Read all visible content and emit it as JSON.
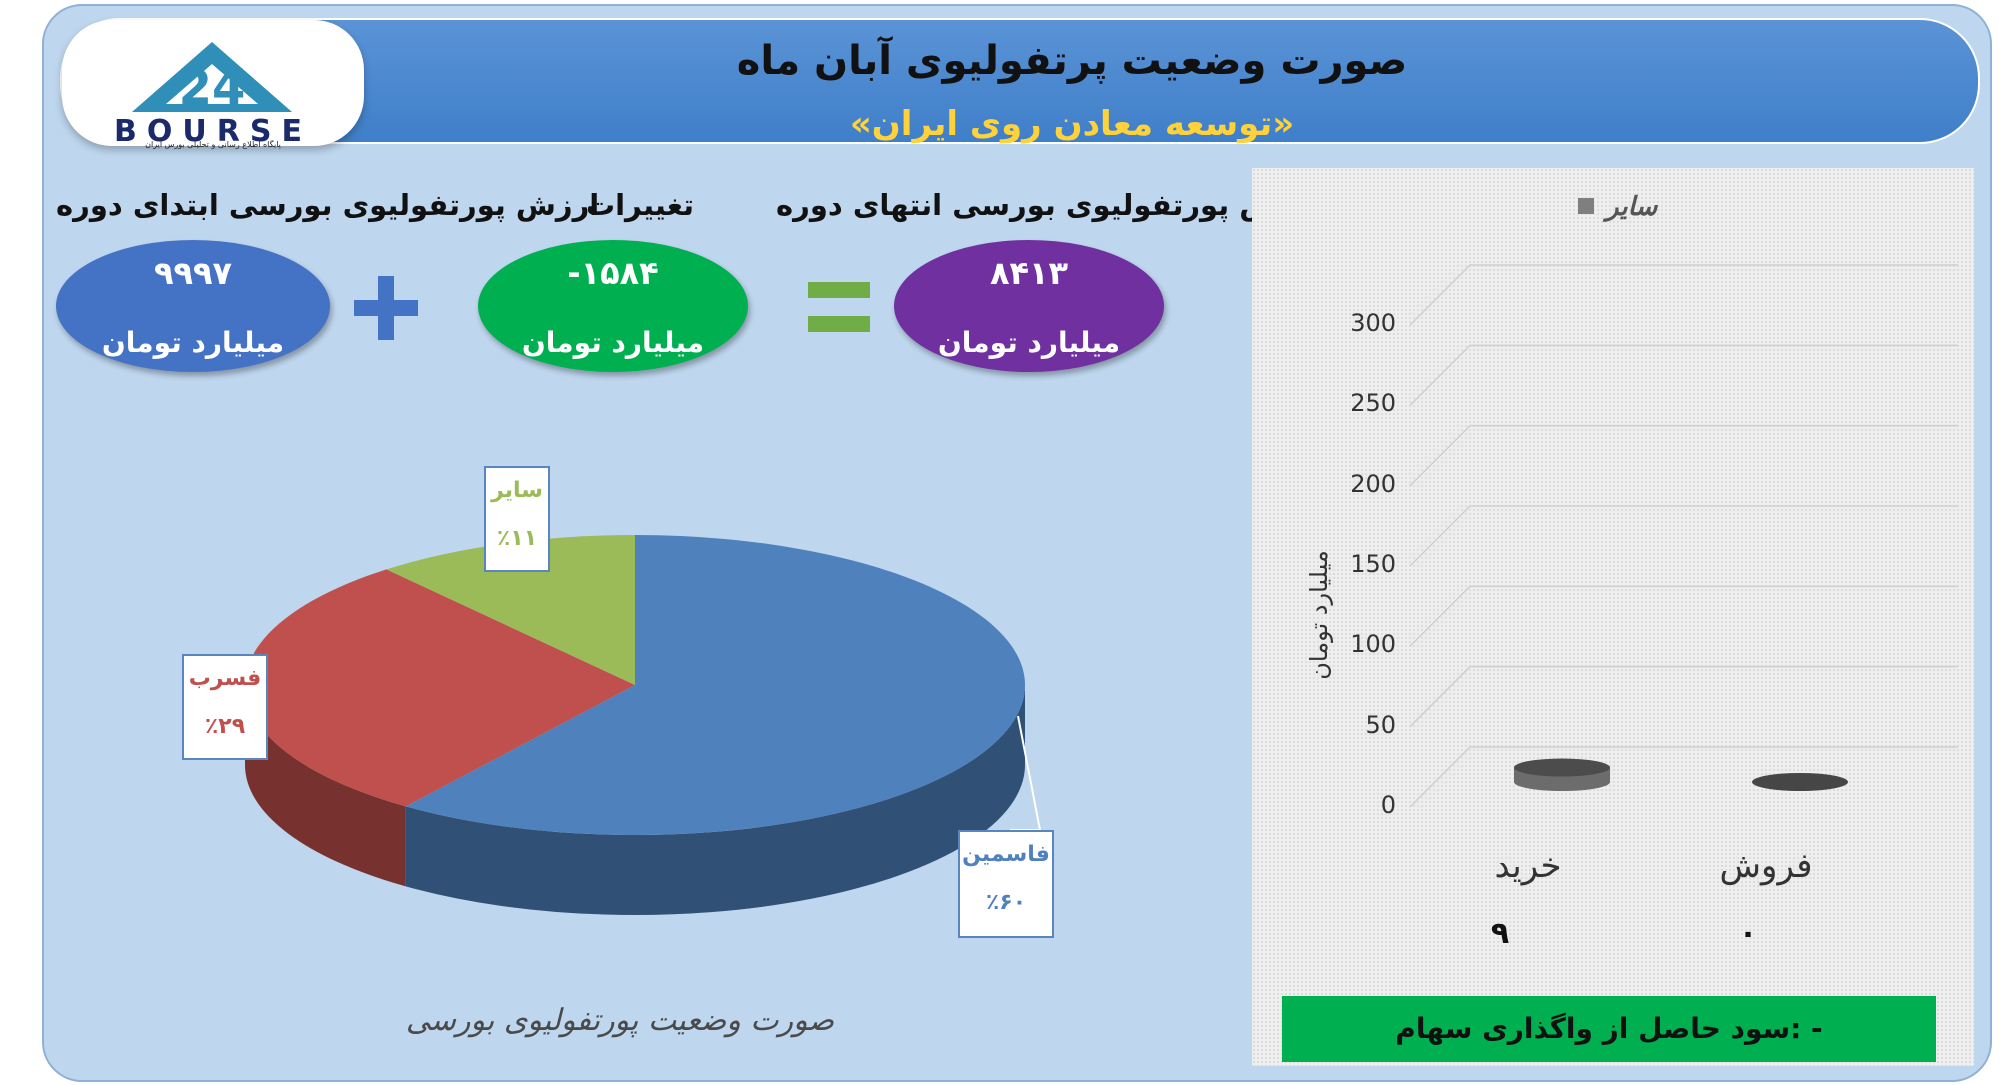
{
  "banner": {
    "title": "صورت وضعیت پرتفولیوی آبان ماه",
    "subtitle": "«توسعه معادن روی ایران»"
  },
  "logo": {
    "text": "BOURSE",
    "tagline": "پایگاه اطلاع رسانی و تحلیلی بورس ایران"
  },
  "summary": {
    "start": {
      "label": "ارزش پورتفولیوی بورسی ابتدای دوره",
      "value": "۹۹۹۷",
      "unit": "میلیارد تومان",
      "color": "#4472c4"
    },
    "change": {
      "label": "تغییرات",
      "value": "-۱۵۸۴",
      "unit": "میلیارد تومان",
      "color": "#00b050"
    },
    "end": {
      "label": "ارزش پورتفولیوی بورسی انتهای دوره",
      "value": "۸۴۱۳",
      "unit": "میلیارد تومان",
      "color": "#7030a0"
    },
    "plus_color": "#4472c4",
    "equals_color": "#70ad47"
  },
  "chart_data": [
    {
      "type": "pie",
      "title": "صورت وضعیت پورتفولیوی بورسی",
      "slices": [
        {
          "name": "فاسمین",
          "value": 60,
          "label": "٪۶۰",
          "color": "#4f81bd"
        },
        {
          "name": "فسرب",
          "value": 29,
          "label": "٪۲۹",
          "color": "#c0504d"
        },
        {
          "name": "سایر",
          "value": 11,
          "label": "٪۱۱",
          "color": "#9bbb59"
        }
      ]
    },
    {
      "type": "bar",
      "categories": [
        "خرید",
        "فروش"
      ],
      "series": [
        {
          "name": "سایر",
          "values": [
            9,
            0
          ],
          "value_labels": [
            "۹",
            "۰"
          ],
          "color": "#7f7f7f"
        }
      ],
      "ylabel": "میلیارد تومان",
      "ylim": [
        0,
        300
      ],
      "yticks": [
        0,
        50,
        100,
        150,
        200,
        250,
        300
      ],
      "grid": true,
      "legend": "top"
    }
  ],
  "profit": {
    "text": "سود حاصل از واگذاری سهام: -"
  }
}
